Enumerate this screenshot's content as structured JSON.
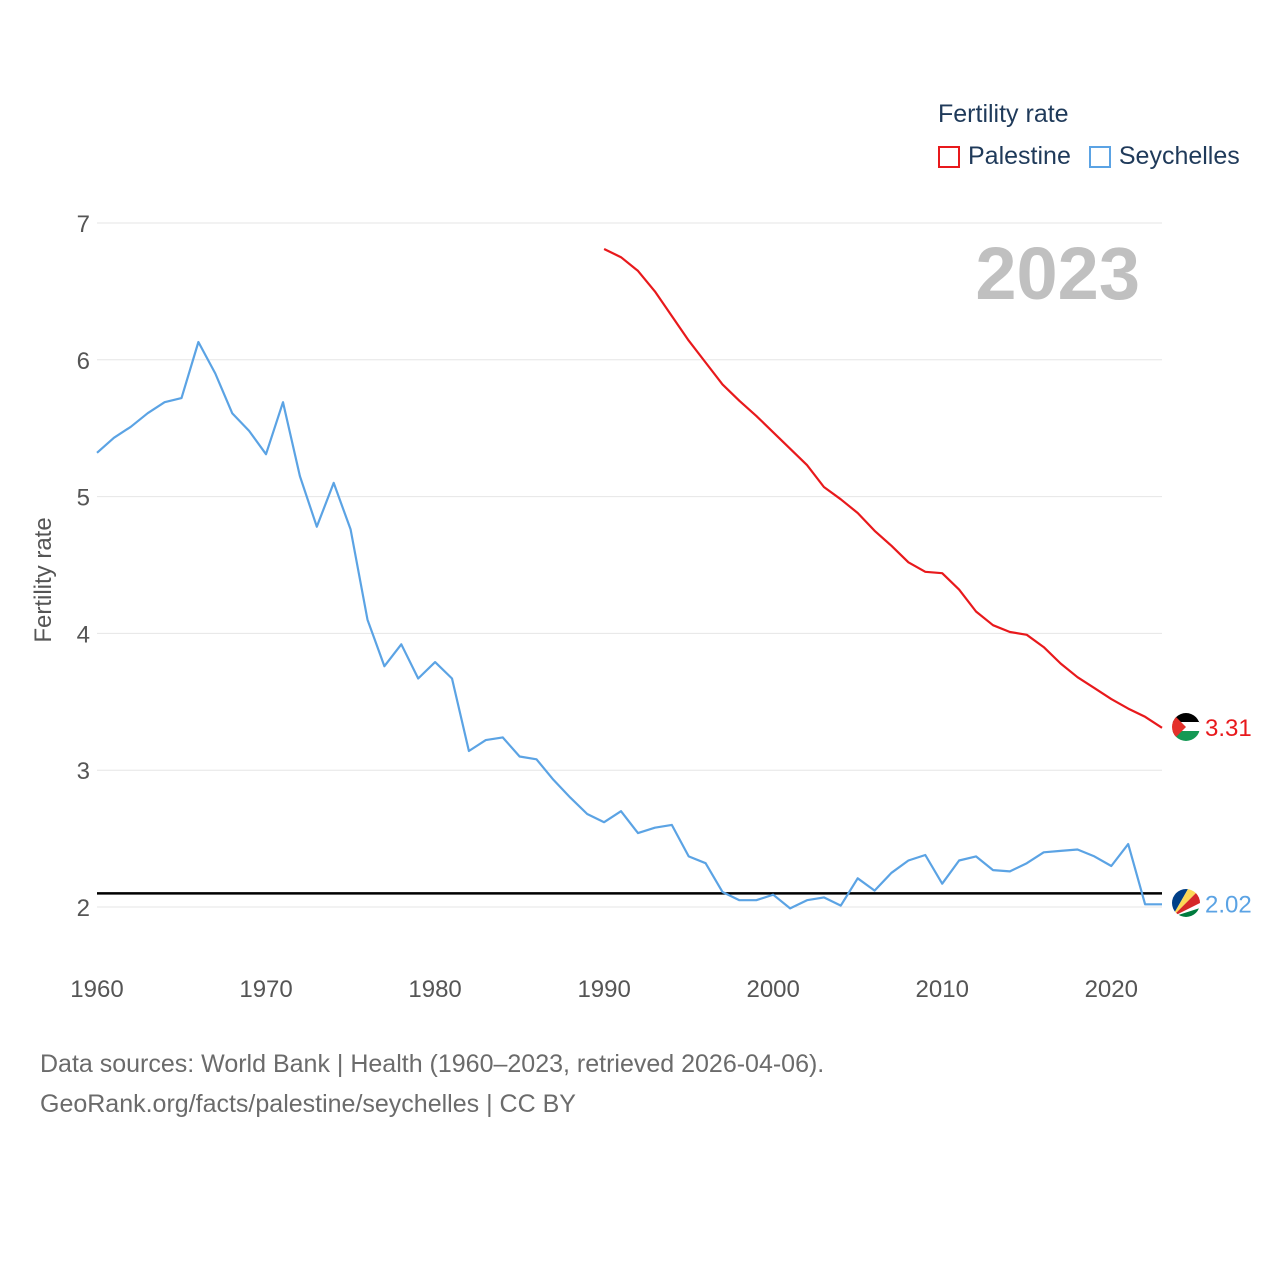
{
  "legend": {
    "title": "Fertility rate",
    "items": [
      {
        "label": "Palestine",
        "color": "#e8191c"
      },
      {
        "label": "Seychelles",
        "color": "#5ba3e4"
      }
    ]
  },
  "year_label": "2023",
  "footer": {
    "line1": "Data sources: World Bank | Health (1960–2023, retrieved 2026-04-06).",
    "line2": "GeoRank.org/facts/palestine/seychelles | CC BY"
  },
  "chart_data": {
    "type": "line",
    "ylabel": "Fertility rate",
    "xlabel": "",
    "xlim": [
      1960,
      2023
    ],
    "ylim": [
      1.6,
      7
    ],
    "x_ticks": [
      1960,
      1970,
      1980,
      1990,
      2000,
      2010,
      2020
    ],
    "y_ticks": [
      2,
      3,
      4,
      5,
      6,
      7
    ],
    "reference_line": {
      "y": 2.1,
      "color": "#000000"
    },
    "end_labels": [
      {
        "series": "Palestine",
        "text": "3.31",
        "flag": "palestine-flag-icon"
      },
      {
        "series": "Seychelles",
        "text": "2.02",
        "flag": "seychelles-flag-icon"
      }
    ],
    "series": [
      {
        "name": "Palestine",
        "color": "#e8191c",
        "x": [
          1990,
          1991,
          1992,
          1993,
          1994,
          1995,
          1996,
          1997,
          1998,
          1999,
          2000,
          2001,
          2002,
          2003,
          2004,
          2005,
          2006,
          2007,
          2008,
          2009,
          2010,
          2011,
          2012,
          2013,
          2014,
          2015,
          2016,
          2017,
          2018,
          2019,
          2020,
          2021,
          2022,
          2023
        ],
        "values": [
          6.81,
          6.75,
          6.65,
          6.5,
          6.32,
          6.14,
          5.98,
          5.82,
          5.7,
          5.59,
          5.47,
          5.35,
          5.23,
          5.07,
          4.98,
          4.88,
          4.75,
          4.64,
          4.52,
          4.45,
          4.44,
          4.32,
          4.16,
          4.06,
          4.01,
          3.99,
          3.9,
          3.78,
          3.68,
          3.6,
          3.52,
          3.45,
          3.39,
          3.31
        ]
      },
      {
        "name": "Seychelles",
        "color": "#5ba3e4",
        "x": [
          1960,
          1961,
          1962,
          1963,
          1964,
          1965,
          1966,
          1967,
          1968,
          1969,
          1970,
          1971,
          1972,
          1973,
          1974,
          1975,
          1976,
          1977,
          1978,
          1979,
          1980,
          1981,
          1982,
          1983,
          1984,
          1985,
          1986,
          1987,
          1988,
          1989,
          1990,
          1991,
          1992,
          1993,
          1994,
          1995,
          1996,
          1997,
          1998,
          1999,
          2000,
          2001,
          2002,
          2003,
          2004,
          2005,
          2006,
          2007,
          2008,
          2009,
          2010,
          2011,
          2012,
          2013,
          2014,
          2015,
          2016,
          2017,
          2018,
          2019,
          2020,
          2021,
          2022,
          2023
        ],
        "values": [
          5.32,
          5.43,
          5.51,
          5.61,
          5.69,
          5.72,
          6.13,
          5.9,
          5.61,
          5.48,
          5.31,
          5.69,
          5.15,
          4.78,
          5.1,
          4.76,
          4.1,
          3.76,
          3.92,
          3.67,
          3.79,
          3.67,
          3.14,
          3.22,
          3.24,
          3.1,
          3.08,
          2.93,
          2.8,
          2.68,
          2.62,
          2.7,
          2.54,
          2.58,
          2.6,
          2.37,
          2.32,
          2.11,
          2.05,
          2.05,
          2.09,
          1.99,
          2.05,
          2.07,
          2.01,
          2.21,
          2.12,
          2.25,
          2.34,
          2.38,
          2.17,
          2.34,
          2.37,
          2.27,
          2.26,
          2.32,
          2.4,
          2.41,
          2.42,
          2.37,
          2.3,
          2.46,
          2.02,
          2.02
        ]
      }
    ]
  }
}
